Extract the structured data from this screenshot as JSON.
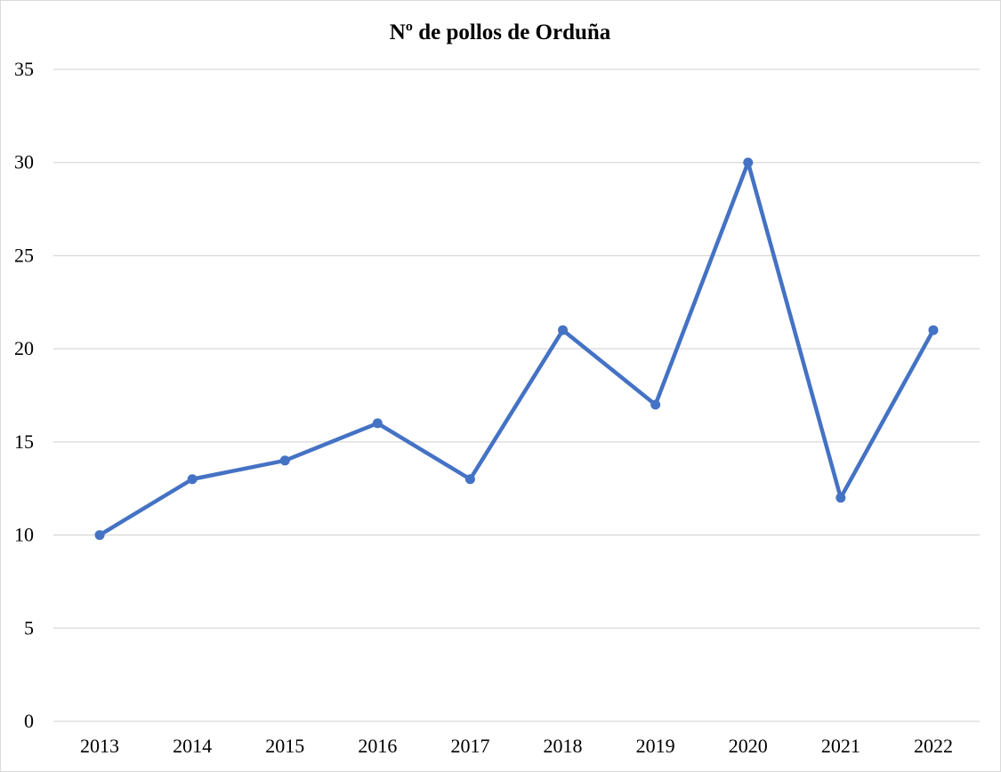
{
  "chart_data": {
    "type": "line",
    "title": "Nº de pollos de Orduña",
    "xlabel": "",
    "ylabel": "",
    "categories": [
      "2013",
      "2014",
      "2015",
      "2016",
      "2017",
      "2018",
      "2019",
      "2020",
      "2021",
      "2022"
    ],
    "series": [
      {
        "values": [
          10,
          13,
          14,
          16,
          13,
          21,
          17,
          30,
          12,
          21
        ],
        "color": "#4472c4"
      }
    ],
    "ylim": [
      0,
      35
    ],
    "yticks": [
      0,
      5,
      10,
      15,
      20,
      25,
      30,
      35
    ],
    "grid": true,
    "legend": "none",
    "markers": true
  }
}
